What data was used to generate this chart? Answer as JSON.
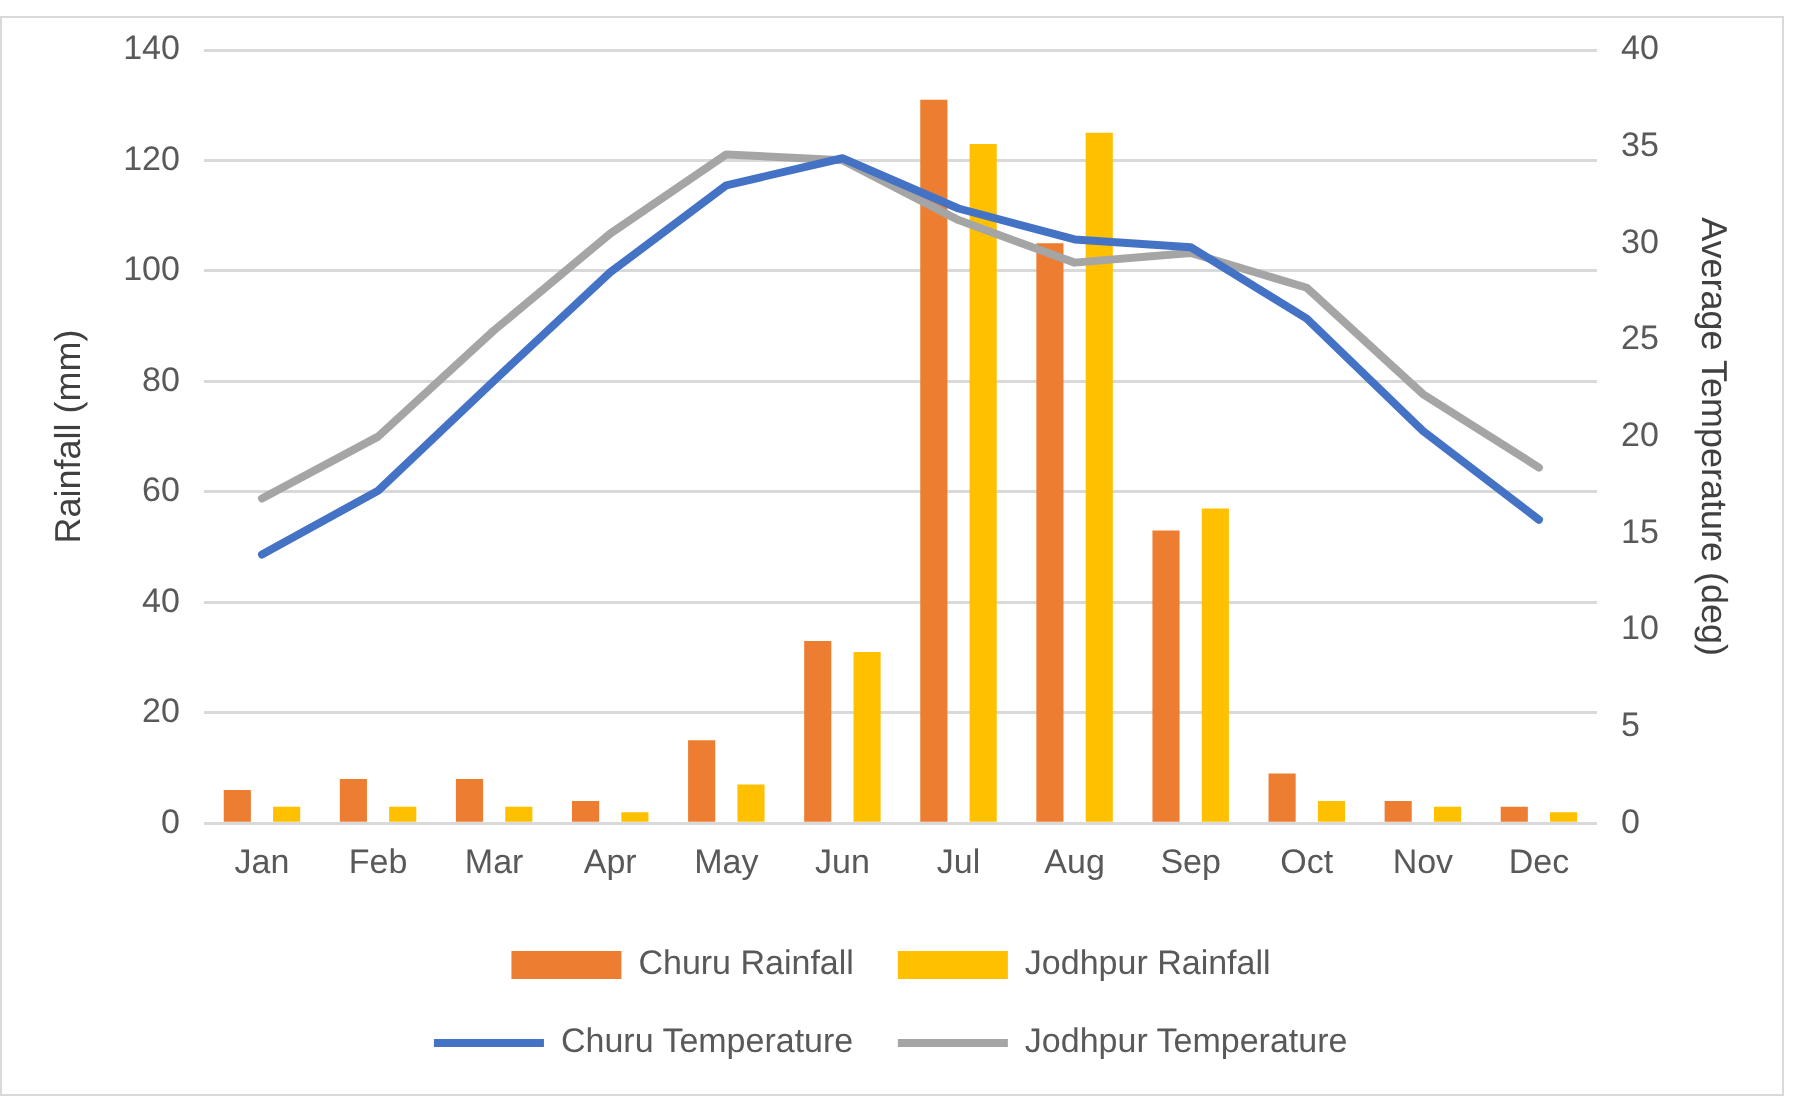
{
  "chart_data": {
    "type": "bar",
    "categories": [
      "Jan",
      "Feb",
      "Mar",
      "Apr",
      "May",
      "Jun",
      "Jul",
      "Aug",
      "Sep",
      "Oct",
      "Nov",
      "Dec"
    ],
    "ylabel": "Rainfall (mm)",
    "y2label": "Average Temperature (deg)",
    "ylim": [
      0,
      140
    ],
    "yticks": [
      0,
      20,
      40,
      60,
      80,
      100,
      120,
      140
    ],
    "y2lim": [
      0,
      40
    ],
    "y2ticks": [
      0,
      5,
      10,
      15,
      20,
      25,
      30,
      35,
      40
    ],
    "grid": "y",
    "legend": "bottom",
    "marker": "none",
    "line_style": "solid",
    "series": [
      {
        "name": "Churu Rainfall",
        "color": "#ed7d31",
        "values": [
          6,
          8,
          8,
          4,
          15,
          33,
          131,
          105,
          53,
          9,
          4,
          3
        ]
      },
      {
        "name": "Jodhpur Rainfall",
        "color": "#ffc000",
        "values": [
          3,
          3,
          3,
          2,
          7,
          31,
          123,
          125,
          57,
          4,
          3,
          2
        ]
      },
      {
        "name": "Churu Temperature",
        "type": "line",
        "axis": "y2",
        "color": "#4472c4",
        "values": [
          13.9,
          17.2,
          22.9,
          28.5,
          33.0,
          34.4,
          31.8,
          30.2,
          29.8,
          26.1,
          20.3,
          15.7
        ]
      },
      {
        "name": "Jodhpur Temperature",
        "type": "line",
        "axis": "y2",
        "color": "#a5a5a5",
        "values": [
          16.8,
          20.0,
          25.5,
          30.5,
          34.6,
          34.3,
          31.2,
          29.0,
          29.5,
          27.7,
          22.2,
          18.4
        ]
      }
    ]
  }
}
